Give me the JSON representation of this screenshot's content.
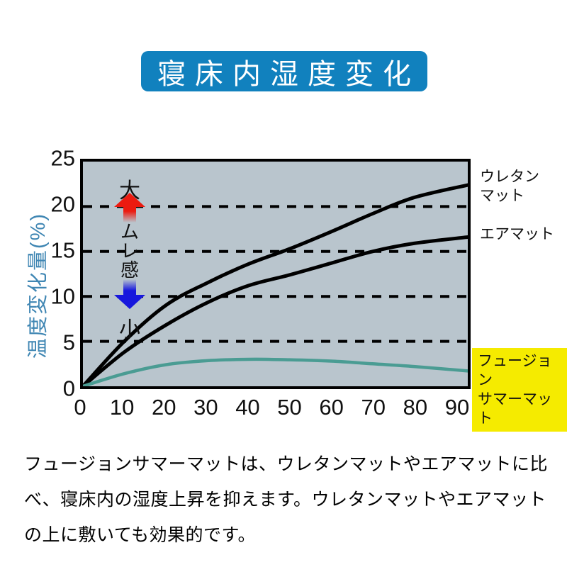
{
  "title": {
    "text": "寝床内湿度変化",
    "bg_color": "#1181be",
    "text_color": "#ffffff"
  },
  "chart_data": {
    "type": "line",
    "ylabel": "温度変化量(%)",
    "ylabel_color": "#3f86b3",
    "plot_bg": "#b9c5cd",
    "border_color": "#000000",
    "xlim": [
      0,
      93
    ],
    "ylim": [
      0,
      25
    ],
    "x_ticks": [
      "0",
      "10",
      "20",
      "30",
      "40",
      "50",
      "60",
      "70",
      "80",
      "90"
    ],
    "y_ticks": [
      "25",
      "20",
      "15",
      "10",
      "5",
      "0"
    ],
    "gridlines_y": [
      20,
      15,
      10,
      5
    ],
    "grid_style": "dashed",
    "legend_position": "right-outside",
    "series": [
      {
        "name": "ウレタンマット",
        "color": "#000000",
        "width": 5,
        "points": [
          [
            0,
            0
          ],
          [
            10,
            5.0
          ],
          [
            20,
            9.0
          ],
          [
            30,
            11.5
          ],
          [
            40,
            13.6
          ],
          [
            50,
            15.3
          ],
          [
            60,
            17.2
          ],
          [
            70,
            19.2
          ],
          [
            80,
            21.0
          ],
          [
            93,
            22.4
          ]
        ]
      },
      {
        "name": "エアマット",
        "color": "#000000",
        "width": 5,
        "points": [
          [
            0,
            0
          ],
          [
            10,
            3.8
          ],
          [
            20,
            6.8
          ],
          [
            30,
            9.3
          ],
          [
            40,
            11.2
          ],
          [
            50,
            12.4
          ],
          [
            60,
            13.7
          ],
          [
            70,
            15.0
          ],
          [
            80,
            15.9
          ],
          [
            93,
            16.6
          ]
        ]
      },
      {
        "name": "フュージョンサマーマット",
        "color": "#4a9c93",
        "width": 4.5,
        "points": [
          [
            0,
            0
          ],
          [
            10,
            1.4
          ],
          [
            20,
            2.4
          ],
          [
            30,
            2.85
          ],
          [
            40,
            3.0
          ],
          [
            50,
            2.95
          ],
          [
            60,
            2.8
          ],
          [
            70,
            2.5
          ],
          [
            80,
            2.2
          ],
          [
            93,
            1.7
          ]
        ]
      }
    ],
    "annotations": {
      "large_label": "大",
      "mure_label": [
        "ム",
        "レ",
        "感"
      ],
      "small_label": "小",
      "up_arrow_color": "#ec1b10",
      "down_arrow_color": "#1717dd"
    },
    "series_labels": {
      "urethane": [
        "ウレタン",
        "マット"
      ],
      "air": "エアマット",
      "fusion": [
        "フュージョン",
        "サマーマット"
      ],
      "fusion_bg": "#f5eb00"
    }
  },
  "description": {
    "lines": [
      "フュージョンサマーマットは、ウレタンマットやエアマットに比",
      "べ、寝床内の湿度上昇を抑えます。ウレタンマットやエアマット",
      "の上に敷いても効果的です。"
    ]
  }
}
